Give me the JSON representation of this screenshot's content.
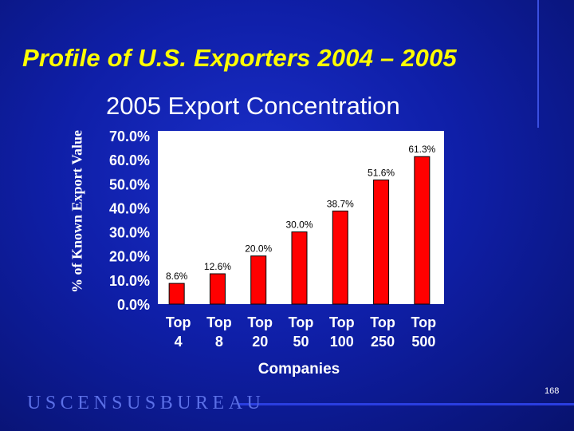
{
  "slide": {
    "title": "Profile of U.S. Exporters 2004 – 2005",
    "logo_text": "USCENSUSBUREAU",
    "page_number": "168"
  },
  "colors": {
    "background": "#0f1fa8",
    "title": "#ffff00",
    "bar": "#ff0000",
    "plot_area": "#ffffff"
  },
  "chart_data": {
    "type": "bar",
    "title": "2005 Export Concentration",
    "ylabel": "% of Known Export Value",
    "xlabel": "Companies",
    "categories": [
      [
        "Top",
        "4"
      ],
      [
        "Top",
        "8"
      ],
      [
        "Top",
        "20"
      ],
      [
        "Top",
        "50"
      ],
      [
        "Top",
        "100"
      ],
      [
        "Top",
        "250"
      ],
      [
        "Top",
        "500"
      ]
    ],
    "values": [
      8.6,
      12.6,
      20.0,
      30.0,
      38.7,
      51.6,
      61.3
    ],
    "value_labels": [
      "8.6%",
      "12.6%",
      "20.0%",
      "30.0%",
      "38.7%",
      "51.6%",
      "61.3%"
    ],
    "yticks": [
      "0.0%",
      "10.0%",
      "20.0%",
      "30.0%",
      "40.0%",
      "50.0%",
      "60.0%",
      "70.0%"
    ],
    "ylim": [
      0,
      70
    ],
    "grid": false,
    "legend": "none"
  }
}
